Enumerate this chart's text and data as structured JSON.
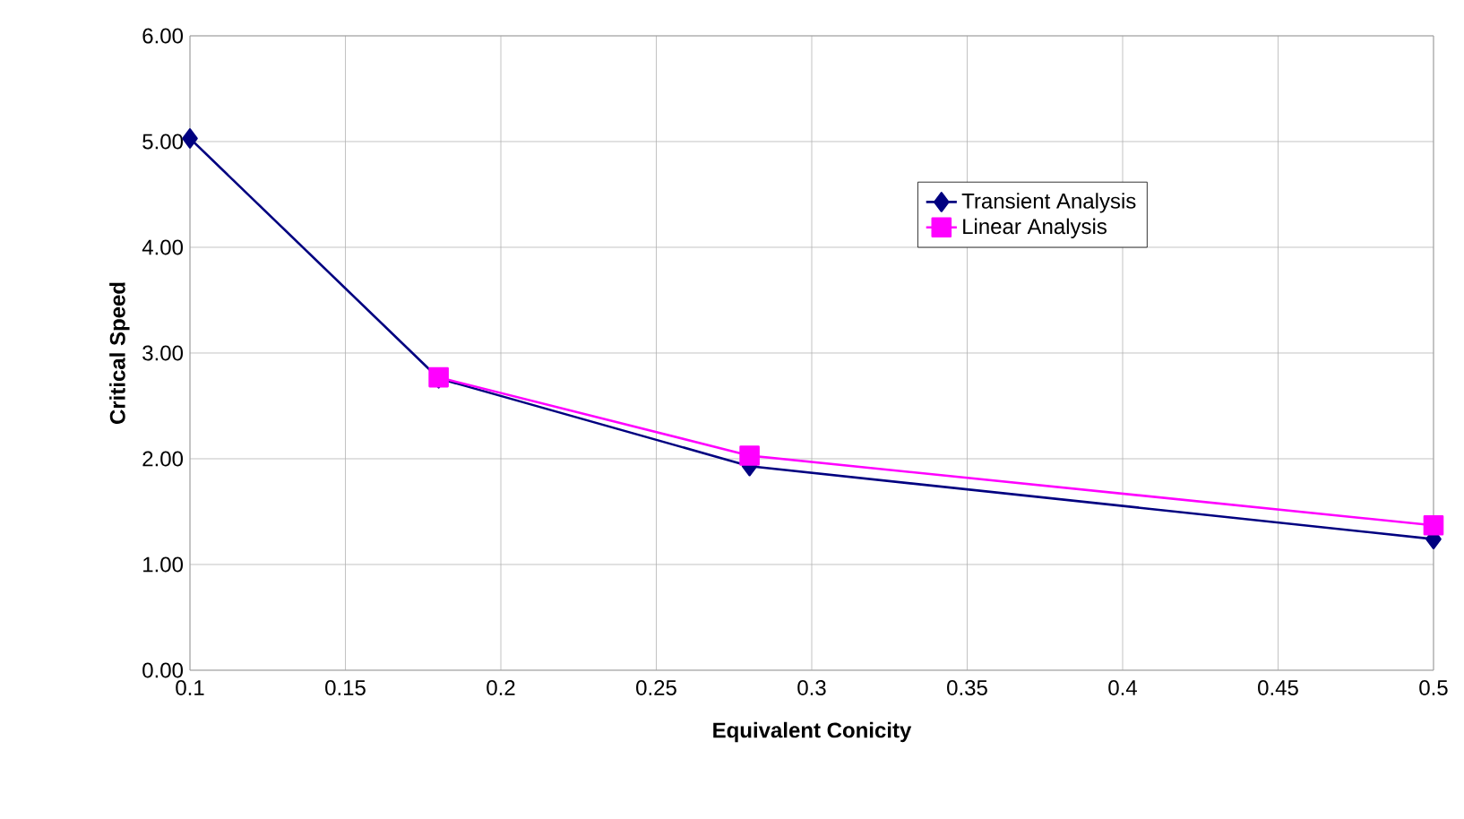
{
  "chart_data": {
    "type": "line",
    "xlabel": "Equivalent Conicity",
    "ylabel": "Critical Speed",
    "xlim": [
      0.1,
      0.5
    ],
    "xticks": [
      0.1,
      0.15,
      0.2,
      0.25,
      0.3,
      0.35,
      0.4,
      0.45,
      0.5
    ],
    "ylim": [
      0,
      6
    ],
    "yticks": [
      {
        "value": 0,
        "label": "0.00"
      },
      {
        "value": 1,
        "label": "1.00"
      },
      {
        "value": 2,
        "label": "2.00"
      },
      {
        "value": 3,
        "label": "3.00"
      },
      {
        "value": 4,
        "label": "4.00"
      },
      {
        "value": 5,
        "label": "5.00"
      },
      {
        "value": 6,
        "label": "6.00"
      }
    ],
    "grid": true,
    "legend": "top right",
    "line_style": "solid",
    "series": [
      {
        "name": "Transient Analysis",
        "color": "#000080",
        "marker": "diamond",
        "x": [
          0.1,
          0.18,
          0.28,
          0.5
        ],
        "values": [
          5.03,
          2.76,
          1.93,
          1.24
        ]
      },
      {
        "name": "Linear Analysis",
        "color": "#ff00ff",
        "marker": "square",
        "x": [
          0.18,
          0.28,
          0.5
        ],
        "values": [
          2.77,
          2.03,
          1.37
        ]
      }
    ]
  }
}
